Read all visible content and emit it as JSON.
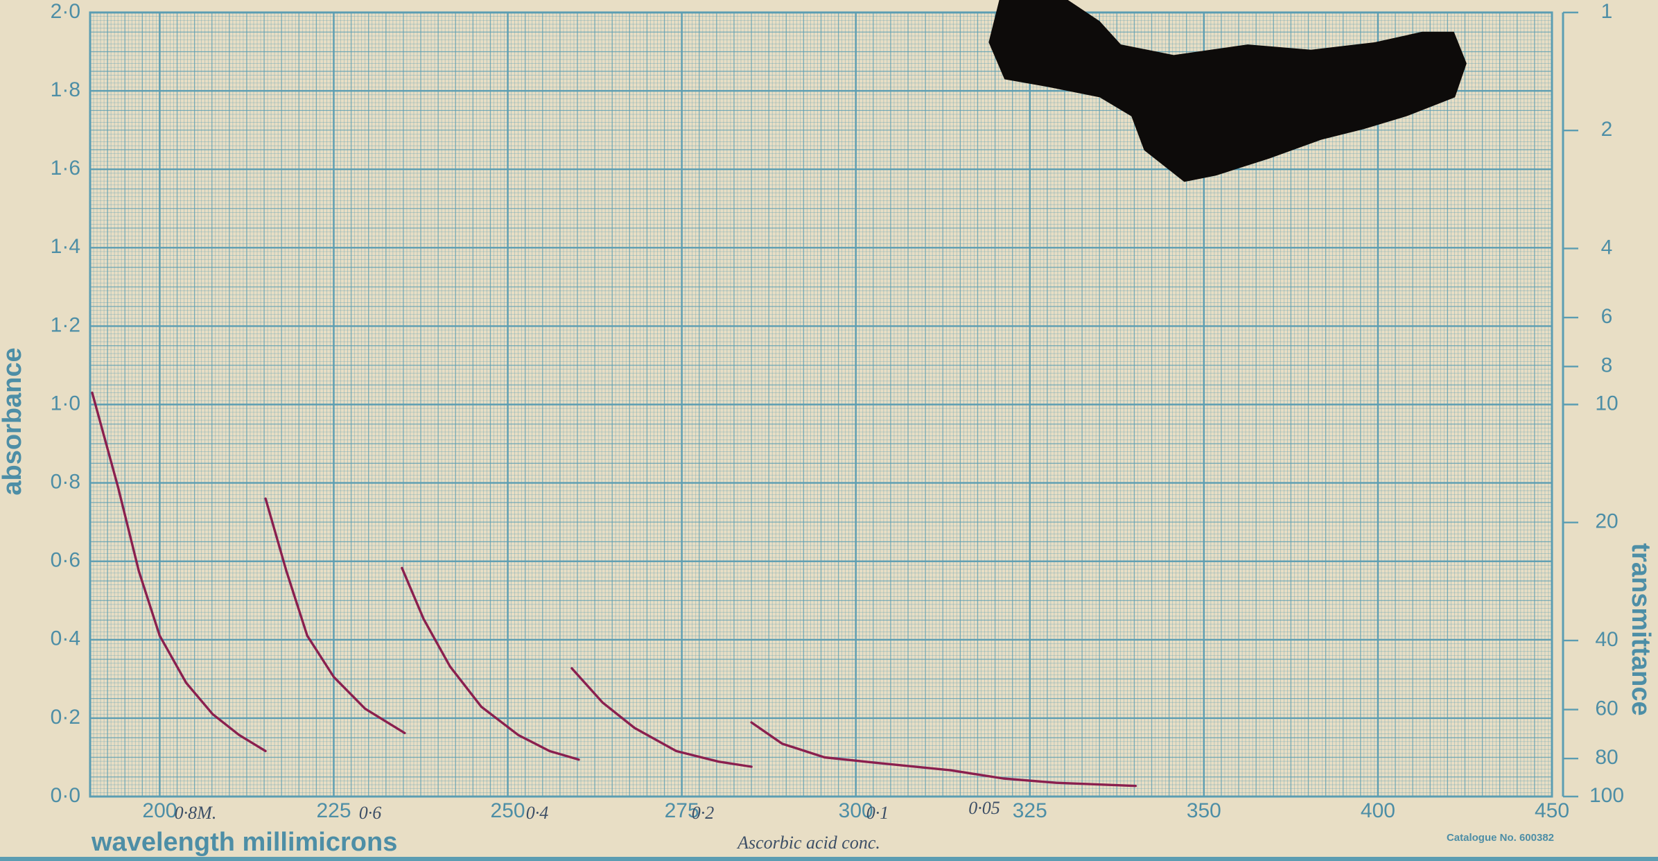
{
  "chart_data": {
    "type": "line",
    "xlabel": "wavelength  millimicrons",
    "ylabel": "absorbance",
    "y2label": "transmittance",
    "footnote": "Catalogue No. 600382",
    "xscale": "segmented",
    "xlim": [
      190,
      450
    ],
    "xticks": [
      200,
      225,
      250,
      275,
      300,
      325,
      350,
      400,
      450
    ],
    "ylim": [
      0,
      2.0
    ],
    "yticks": [
      {
        "value": 0,
        "label": "0·0"
      },
      {
        "value": 0.2,
        "label": "0·2"
      },
      {
        "value": 0.4,
        "label": "0·4"
      },
      {
        "value": 0.6,
        "label": "0·6"
      },
      {
        "value": 0.8,
        "label": "0·8"
      },
      {
        "value": 1.0,
        "label": "1·0"
      },
      {
        "value": 1.2,
        "label": "1·2"
      },
      {
        "value": 1.4,
        "label": "1·4"
      },
      {
        "value": 1.6,
        "label": "1·6"
      },
      {
        "value": 1.8,
        "label": "1·8"
      },
      {
        "value": 2.0,
        "label": "2·0"
      }
    ],
    "y2scale": "log",
    "y2lim": [
      100,
      1
    ],
    "y2ticks": [
      1,
      2,
      4,
      6,
      8,
      10,
      20,
      40,
      60,
      80,
      100
    ],
    "grid": true,
    "grid_color": "#5b9db2",
    "series": [
      {
        "color": "#8a1f4e",
        "x": [
          190.3,
          194,
          197,
          200,
          203.8,
          207.6,
          211.4,
          215.2
        ],
        "values": [
          1.03,
          0.79,
          0.575,
          0.41,
          0.29,
          0.21,
          0.157,
          0.116
        ]
      },
      {
        "color": "#8a1f4e",
        "x": [
          215.2,
          218.2,
          221.2,
          225,
          229.5,
          235.2
        ],
        "values": [
          0.76,
          0.575,
          0.41,
          0.305,
          0.224,
          0.162
        ]
      },
      {
        "color": "#8a1f4e",
        "x": [
          234.8,
          237.9,
          241.7,
          246.2,
          251.5,
          256,
          260.2
        ],
        "values": [
          0.583,
          0.453,
          0.332,
          0.229,
          0.157,
          0.116,
          0.094
        ]
      },
      {
        "color": "#8a1f4e",
        "x": [
          259.2,
          263.6,
          268.2,
          274.2,
          280.3,
          285
        ],
        "values": [
          0.327,
          0.24,
          0.175,
          0.116,
          0.089,
          0.076
        ]
      },
      {
        "color": "#8a1f4e",
        "x": [
          285,
          289.4,
          295.5,
          303,
          313.6,
          321.2,
          328.8,
          340.2
        ],
        "values": [
          0.189,
          0.135,
          0.1,
          0.086,
          0.067,
          0.046,
          0.035,
          0.027
        ]
      }
    ],
    "annotations": [
      "0·8M.",
      "0·6",
      "0·4",
      "0·2",
      "0·1",
      "0·05",
      "Ascorbic acid conc."
    ]
  }
}
